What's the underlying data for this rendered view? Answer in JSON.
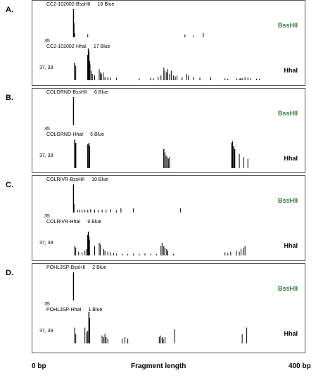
{
  "chart_data": {
    "type": "bar",
    "xlabel": "Fragment length",
    "xlim": [
      0,
      400
    ],
    "x_tick_labels": [
      "0 bp",
      "400 bp"
    ],
    "panels": [
      {
        "label": "A.",
        "traces": [
          {
            "title": "CC2-102002-BssHII",
            "count": "18 Blue",
            "enzyme": "BssHII",
            "color": "#2e7d32",
            "peak_label": "35",
            "peaks": [
              [
                35,
                1.0
              ],
              [
                36,
                0.5
              ],
              [
                37,
                0.15
              ],
              [
                60,
                0.12
              ],
              [
                230,
                0.1
              ],
              [
                245,
                0.06
              ],
              [
                262,
                0.15
              ]
            ]
          },
          {
            "title": "CC2-102002-HhaI",
            "count": "17 Blue",
            "enzyme": "HhaI",
            "color": "#000000",
            "peak_label": "37, 39",
            "peaks": [
              [
                37,
                0.55
              ],
              [
                39,
                0.45
              ],
              [
                60,
                0.8
              ],
              [
                61,
                1.0
              ],
              [
                62,
                0.9
              ],
              [
                63,
                0.6
              ],
              [
                64,
                0.5
              ],
              [
                66,
                0.3
              ],
              [
                68,
                0.2
              ],
              [
                72,
                0.15
              ],
              [
                80,
                0.35
              ],
              [
                82,
                0.25
              ],
              [
                84,
                0.2
              ],
              [
                87,
                0.25
              ],
              [
                90,
                0.1
              ],
              [
                95,
                0.1
              ],
              [
                100,
                0.08
              ],
              [
                110,
                0.08
              ],
              [
                150,
                0.06
              ],
              [
                170,
                0.08
              ],
              [
                175,
                0.06
              ],
              [
                183,
                0.1
              ],
              [
                188,
                0.15
              ],
              [
                193,
                0.4
              ],
              [
                195,
                0.3
              ],
              [
                198,
                0.25
              ],
              [
                200,
                0.35
              ],
              [
                203,
                0.2
              ],
              [
                206,
                0.3
              ],
              [
                210,
                0.15
              ],
              [
                213,
                0.12
              ],
              [
                216,
                0.15
              ],
              [
                225,
                0.1
              ],
              [
                233,
                0.2
              ],
              [
                236,
                0.15
              ],
              [
                245,
                0.1
              ],
              [
                256,
                0.08
              ],
              [
                275,
                0.1
              ],
              [
                300,
                0.06
              ],
              [
                305,
                0.05
              ],
              [
                320,
                0.06
              ],
              [
                325,
                0.05
              ],
              [
                327,
                0.06
              ],
              [
                330,
                0.07
              ],
              [
                335,
                0.1
              ],
              [
                340,
                0.08
              ],
              [
                345,
                0.06
              ],
              [
                355,
                0.05
              ],
              [
                360,
                0.04
              ]
            ]
          }
        ]
      },
      {
        "label": "B.",
        "traces": [
          {
            "title": "COLGRND-BssHII",
            "count": "6 Blue",
            "enzyme": "BssHII",
            "color": "#2e7d32",
            "peak_label": "35",
            "peaks": [
              [
                35,
                1.0
              ]
            ]
          },
          {
            "title": "COLGRND-HhaI",
            "count": "5 Blue",
            "enzyme": "HhaI",
            "color": "#000000",
            "peak_label": "37, 39",
            "peaks": [
              [
                37,
                0.9
              ],
              [
                39,
                0.8
              ],
              [
                60,
                0.75
              ],
              [
                62,
                0.8
              ],
              [
                63,
                0.7
              ],
              [
                193,
                0.6
              ],
              [
                195,
                0.5
              ],
              [
                197,
                0.4
              ],
              [
                199,
                0.35
              ],
              [
                201,
                0.3
              ],
              [
                203,
                0.35
              ],
              [
                312,
                0.8
              ],
              [
                313,
                0.85
              ],
              [
                315,
                0.7
              ],
              [
                317,
                0.6
              ],
              [
                325,
                0.45
              ],
              [
                333,
                0.35
              ],
              [
                340,
                0.3
              ]
            ]
          }
        ]
      },
      {
        "label": "C.",
        "traces": [
          {
            "title": "COLRIVR-BssHII",
            "count": "10 Blue",
            "enzyme": "BssHII",
            "color": "#2e7d32",
            "peak_label": "35",
            "peaks": [
              [
                35,
                1.0
              ],
              [
                36,
                0.3
              ],
              [
                42,
                0.1
              ],
              [
                46,
                0.1
              ],
              [
                50,
                0.1
              ],
              [
                55,
                0.1
              ],
              [
                60,
                0.1
              ],
              [
                65,
                0.12
              ],
              [
                72,
                0.1
              ],
              [
                78,
                0.1
              ],
              [
                85,
                0.1
              ],
              [
                92,
                0.1
              ],
              [
                100,
                0.12
              ],
              [
                110,
                0.08
              ],
              [
                118,
                0.15
              ],
              [
                140,
                0.15
              ],
              [
                222,
                0.15
              ]
            ]
          },
          {
            "title": "COLRIVR-HhaI",
            "count": "9 Blue",
            "enzyme": "HhaI",
            "color": "#000000",
            "peak_label": "37, 39",
            "peaks": [
              [
                37,
                0.3
              ],
              [
                39,
                0.25
              ],
              [
                44,
                0.12
              ],
              [
                50,
                0.1
              ],
              [
                55,
                0.15
              ],
              [
                58,
                0.2
              ],
              [
                60,
                0.65
              ],
              [
                61,
                0.75
              ],
              [
                62,
                0.6
              ],
              [
                63,
                0.5
              ],
              [
                72,
                0.3
              ],
              [
                80,
                0.4
              ],
              [
                82,
                0.35
              ],
              [
                88,
                0.2
              ],
              [
                90,
                0.15
              ],
              [
                95,
                0.12
              ],
              [
                100,
                0.1
              ],
              [
                105,
                0.08
              ],
              [
                110,
                0.06
              ],
              [
                120,
                0.06
              ],
              [
                130,
                0.05
              ],
              [
                140,
                0.06
              ],
              [
                150,
                0.05
              ],
              [
                160,
                0.06
              ],
              [
                170,
                0.05
              ],
              [
                180,
                0.05
              ],
              [
                188,
                0.3
              ],
              [
                190,
                0.4
              ],
              [
                193,
                0.3
              ],
              [
                195,
                0.25
              ],
              [
                198,
                0.2
              ],
              [
                200,
                0.15
              ],
              [
                210,
                0.05
              ],
              [
                300,
                0.1
              ],
              [
                305,
                0.08
              ],
              [
                310,
                0.12
              ],
              [
                320,
                0.15
              ],
              [
                325,
                0.12
              ],
              [
                328,
                0.2
              ],
              [
                332,
                0.25
              ],
              [
                335,
                0.3
              ]
            ]
          }
        ]
      },
      {
        "label": "D.",
        "traces": [
          {
            "title": "POHL3SP-BssHII",
            "count": "2 Blue",
            "enzyme": "BssHII",
            "color": "#2e7d32",
            "peak_label": "35",
            "peaks": [
              [
                35,
                1.0
              ]
            ]
          },
          {
            "title": "POHL3SP-HhaI",
            "count": "1 Blue",
            "enzyme": "HhaI",
            "color": "#000000",
            "peak_label": "37, 39",
            "peaks": [
              [
                37,
                0.5
              ],
              [
                39,
                0.3
              ],
              [
                55,
                0.5
              ],
              [
                58,
                0.35
              ],
              [
                60,
                0.4
              ],
              [
                62,
                1.0
              ],
              [
                63,
                0.8
              ],
              [
                85,
                0.25
              ],
              [
                88,
                0.2
              ],
              [
                90,
                0.3
              ],
              [
                92,
                0.2
              ],
              [
                95,
                0.15
              ],
              [
                120,
                0.15
              ],
              [
                125,
                0.2
              ],
              [
                130,
                0.15
              ],
              [
                185,
                0.2
              ],
              [
                187,
                0.25
              ],
              [
                190,
                0.2
              ],
              [
                192,
                0.15
              ],
              [
                195,
                0.2
              ],
              [
                212,
                0.45
              ],
              [
                330,
                0.3
              ],
              [
                338,
                0.5
              ]
            ]
          }
        ]
      }
    ]
  }
}
